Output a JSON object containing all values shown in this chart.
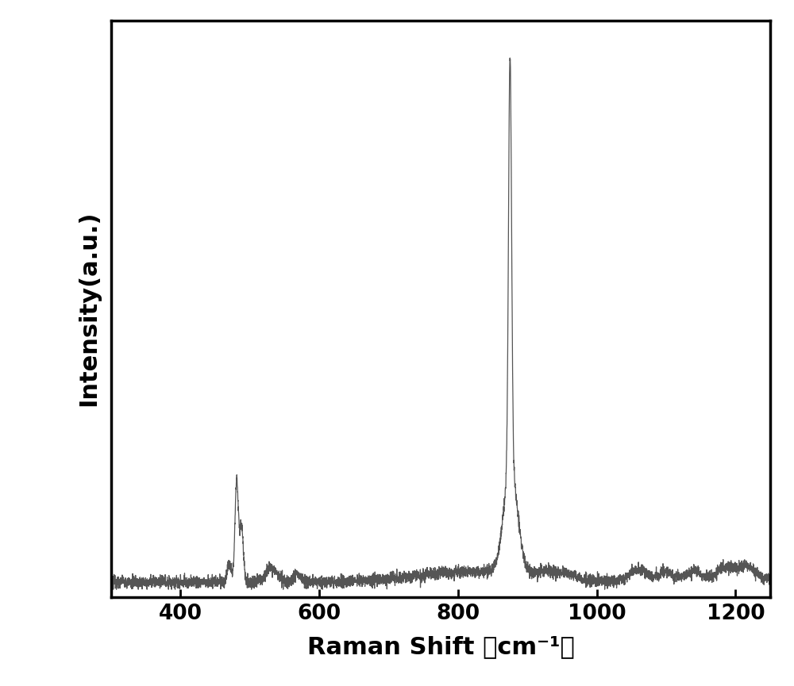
{
  "title": "",
  "xlabel": "Raman Shift （cm⁻¹）",
  "ylabel": "Intensity(a.u.)",
  "xlim": [
    300,
    1250
  ],
  "line_color": "#555555",
  "line_width": 0.9,
  "background_color": "#ffffff",
  "xlabel_fontsize": 22,
  "ylabel_fontsize": 22,
  "tick_fontsize": 19,
  "xlabel_fontweight": "bold",
  "ylabel_fontweight": "bold",
  "tick_fontweight": "bold",
  "xticks": [
    400,
    600,
    800,
    1000,
    1200
  ]
}
